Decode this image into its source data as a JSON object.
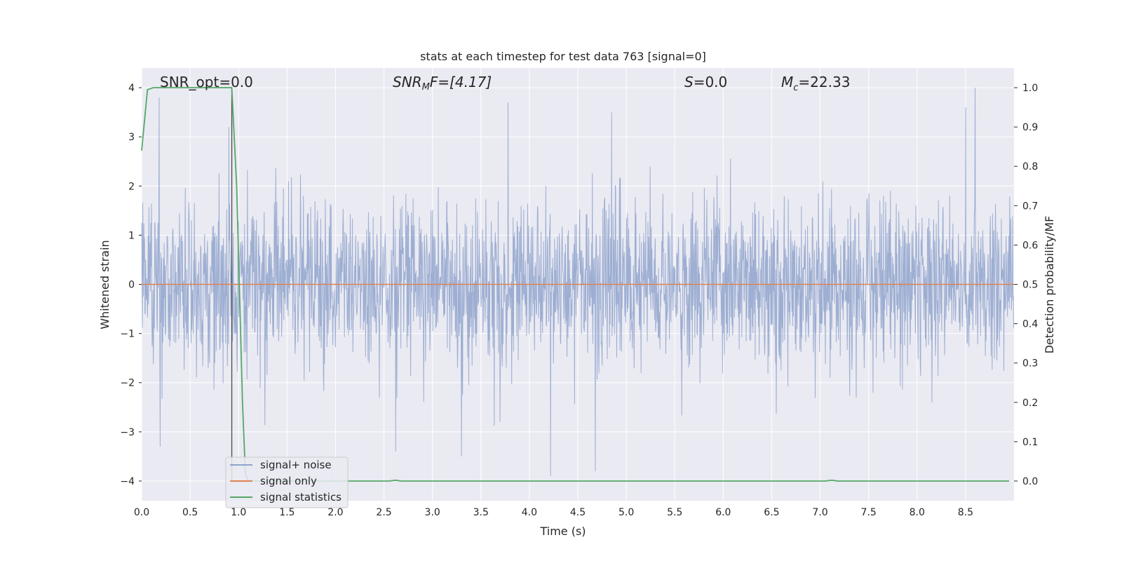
{
  "chart_data": {
    "type": "line",
    "title": "stats at each timestep for test data 763 [signal=0]",
    "xlabel": "Time (s)",
    "ylabel_left": "Whitened strain",
    "ylabel_right": "Detection probability/MF",
    "xlim": [
      0.0,
      9.0
    ],
    "ylim_left": [
      -4.4,
      4.4
    ],
    "ylim_right": [
      -0.05,
      1.05
    ],
    "grid": true,
    "x_ticks": [
      "0.0",
      "0.5",
      "1.0",
      "1.5",
      "2.0",
      "2.5",
      "3.0",
      "3.5",
      "4.0",
      "4.5",
      "5.0",
      "5.5",
      "6.0",
      "6.5",
      "7.0",
      "7.5",
      "8.0",
      "8.5"
    ],
    "x_tick_values": [
      0.0,
      0.5,
      1.0,
      1.5,
      2.0,
      2.5,
      3.0,
      3.5,
      4.0,
      4.5,
      5.0,
      5.5,
      6.0,
      6.5,
      7.0,
      7.5,
      8.0,
      8.5
    ],
    "y_left_ticks": [
      "4",
      "3",
      "2",
      "1",
      "0",
      "−1",
      "−2",
      "−3",
      "−4"
    ],
    "y_left_tick_values": [
      4,
      3,
      2,
      1,
      0,
      -1,
      -2,
      -3,
      -4
    ],
    "y_right_ticks": [
      "1.0",
      "0.9",
      "0.8",
      "0.7",
      "0.6",
      "0.5",
      "0.4",
      "0.3",
      "0.2",
      "0.1",
      "0.0"
    ],
    "y_right_tick_values": [
      1.0,
      0.9,
      0.8,
      0.7,
      0.6,
      0.5,
      0.4,
      0.3,
      0.2,
      0.1,
      0.0
    ],
    "annotations": {
      "snr_opt": "SNR_opt=0.0",
      "snr_mf_base": "SNR",
      "snr_mf_sub": "M",
      "snr_mf_rest": "F=[4.17]",
      "s_sym": "S",
      "s_rest": "=0.0",
      "mc_base": "M",
      "mc_sub": "c",
      "mc_rest": "=22.33"
    },
    "vline_x": 0.93,
    "legend_position": "lower left",
    "series": [
      {
        "name": "signal+ noise",
        "axis": "left",
        "color": "#8fa3cc",
        "description": "whitened noisy strain, approximately Gaussian, amplitude mostly within ±2.5",
        "sample_extremes": [
          {
            "x": 0.18,
            "y": 3.8
          },
          {
            "x": 0.19,
            "y": -3.3
          },
          {
            "x": 0.9,
            "y": 3.2
          },
          {
            "x": 2.62,
            "y": -3.4
          },
          {
            "x": 3.3,
            "y": -3.5
          },
          {
            "x": 3.78,
            "y": 3.7
          },
          {
            "x": 4.22,
            "y": -3.9
          },
          {
            "x": 4.68,
            "y": -3.8
          },
          {
            "x": 4.85,
            "y": 3.5
          },
          {
            "x": 8.6,
            "y": 4.0
          },
          {
            "x": 8.5,
            "y": 3.6
          }
        ],
        "noise_std": 0.85
      },
      {
        "name": "signal only",
        "axis": "left",
        "color": "#dd8452",
        "x": [
          0.0,
          9.0
        ],
        "y": [
          0.0,
          0.0
        ]
      },
      {
        "name": "signal statistics",
        "axis": "right",
        "color": "#55a868",
        "x": [
          0.0,
          0.06,
          0.12,
          0.5,
          0.93,
          0.98,
          1.04,
          1.07,
          1.1,
          2.55,
          2.62,
          2.68,
          7.05,
          7.12,
          7.18,
          8.95
        ],
        "y": [
          0.84,
          0.995,
          1.0,
          1.0,
          1.0,
          0.75,
          0.2,
          0.02,
          0.0,
          0.0,
          0.002,
          0.0,
          0.0,
          0.002,
          0.0,
          0.0
        ]
      }
    ],
    "legend": [
      "signal+ noise",
      "signal only",
      "signal statistics"
    ]
  },
  "colors": {
    "axes_bg": "#eaeaf2",
    "grid": "#ffffff",
    "noise_fill": "#9aabd0",
    "noise_line": "#8fa3cc",
    "signal_only": "#dd8452",
    "stats": "#55a868",
    "vline": "#4a4a4a",
    "zero_line": "#a0a0a8"
  }
}
